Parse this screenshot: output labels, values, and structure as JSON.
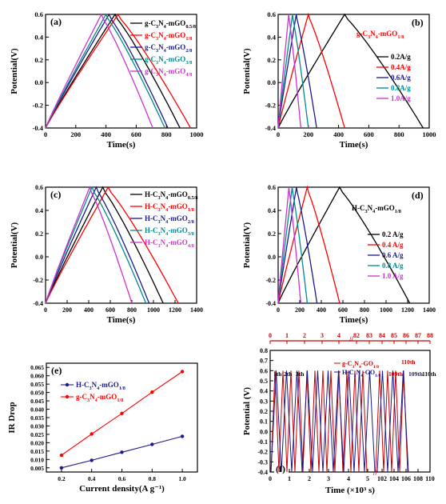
{
  "chart_data": [
    {
      "type": "line",
      "panel": "(a)",
      "xlabel": "Time(s)",
      "ylabel": "Potential(V)",
      "xlim": [
        0,
        1000
      ],
      "ylim": [
        -0.4,
        0.6
      ],
      "xticks": [
        0,
        200,
        400,
        600,
        800,
        1000
      ],
      "yticks": [
        -0.4,
        -0.2,
        0.0,
        0.2,
        0.4,
        0.6
      ],
      "legend_position": "top-right",
      "series": [
        {
          "name": "g-C3N4-mGO0.5/8",
          "name_parts": [
            "g-C",
            "3",
            "N",
            "4",
            "-mGO",
            "0.5/8"
          ],
          "color": "#000000",
          "x": [
            0,
            460,
            890
          ]
        },
        {
          "name": "g-C3N4-mGO1/8",
          "name_parts": [
            "g-C",
            "3",
            "N",
            "4",
            "-mGO",
            "1/8"
          ],
          "color": "#ff0000",
          "x": [
            0,
            480,
            960
          ]
        },
        {
          "name": "g-C3N4-mGO2/8",
          "name_parts": [
            "g-C",
            "3",
            "N",
            "4",
            "-mGO",
            "2/8"
          ],
          "color": "#1a1a8c",
          "x": [
            0,
            420,
            810
          ]
        },
        {
          "name": "g-C3N4-mGO3/8",
          "name_parts": [
            "g-C",
            "3",
            "N",
            "4",
            "-mGO",
            "3/8"
          ],
          "color": "#008b8b",
          "x": [
            0,
            400,
            790
          ]
        },
        {
          "name": "g-C3N4-mGO4/8",
          "name_parts": [
            "g-C",
            "3",
            "N",
            "4",
            "-mGO",
            "4/8"
          ],
          "color": "#cc33cc",
          "x": [
            0,
            370,
            710
          ]
        }
      ]
    },
    {
      "type": "line",
      "panel": "(b)",
      "xlabel": "Time(s)",
      "ylabel": "Potential(V)",
      "xlim": [
        0,
        1000
      ],
      "ylim": [
        -0.4,
        0.6
      ],
      "xticks": [
        0,
        200,
        400,
        600,
        800,
        1000
      ],
      "yticks": [
        -0.4,
        -0.2,
        0.0,
        0.2,
        0.4,
        0.6
      ],
      "annotation_parts": [
        "g-C",
        "3",
        "N",
        "4",
        "-mGO",
        "1/8"
      ],
      "legend_position": "right",
      "series": [
        {
          "name": "0.2 A/g",
          "color": "#000000",
          "x": [
            0,
            440,
            960
          ]
        },
        {
          "name": "0.4 A/g",
          "color": "#ff0000",
          "x": [
            0,
            200,
            440
          ]
        },
        {
          "name": "0.6 A/g",
          "color": "#1a1a8c",
          "x": [
            0,
            120,
            255
          ]
        },
        {
          "name": "0.8 A/g",
          "color": "#008b8b",
          "x": [
            0,
            95,
            200
          ]
        },
        {
          "name": "1.0 A/g",
          "color": "#cc33cc",
          "x": [
            0,
            70,
            150
          ]
        }
      ]
    },
    {
      "type": "line",
      "panel": "(c)",
      "xlabel": "Time(s)",
      "ylabel": "Potential(V)",
      "xlim": [
        0,
        1400
      ],
      "ylim": [
        -0.4,
        0.6
      ],
      "xticks": [
        0,
        200,
        400,
        600,
        800,
        1000,
        1200,
        1400
      ],
      "yticks": [
        -0.4,
        -0.2,
        0.0,
        0.2,
        0.4,
        0.6
      ],
      "legend_position": "top-right",
      "series": [
        {
          "name": "H-C3N4-mGO0.5/8",
          "name_parts": [
            "H-C",
            "3",
            "N",
            "4",
            "-mGO",
            "0.5/8"
          ],
          "color": "#000000",
          "x": [
            0,
            530,
            1090
          ]
        },
        {
          "name": "H-C3N4-mGO1/8",
          "name_parts": [
            "H-C",
            "3",
            "N",
            "4",
            "-mGO",
            "1/8"
          ],
          "color": "#ff0000",
          "x": [
            0,
            580,
            1230
          ]
        },
        {
          "name": "H-C3N4-mGO2/8",
          "name_parts": [
            "H-C",
            "3",
            "N",
            "4",
            "-mGO",
            "2/8"
          ],
          "color": "#1a1a8c",
          "x": [
            0,
            470,
            960
          ]
        },
        {
          "name": "H-C3N4-mGO3/8",
          "name_parts": [
            "H-C",
            "3",
            "N",
            "4",
            "-mGO",
            "3/8"
          ],
          "color": "#008b8b",
          "x": [
            0,
            430,
            930
          ]
        },
        {
          "name": "H-C3N4-mGO4/8",
          "name_parts": [
            "H-C",
            "3",
            "N",
            "4",
            "-mGO",
            "4/8"
          ],
          "color": "#cc33cc",
          "x": [
            0,
            410,
            800
          ]
        }
      ]
    },
    {
      "type": "line",
      "panel": "(d)",
      "xlabel": "Time(s)",
      "ylabel": "Potential(V)",
      "xlim": [
        0,
        1400
      ],
      "ylim": [
        -0.4,
        0.6
      ],
      "xticks": [
        0,
        200,
        400,
        600,
        800,
        1000,
        1200,
        1400
      ],
      "yticks": [
        -0.4,
        -0.2,
        0.0,
        0.2,
        0.4,
        0.6
      ],
      "annotation_parts": [
        "H-C",
        "3",
        "N",
        "4",
        "-mGO",
        "1/8"
      ],
      "legend_position": "right",
      "series": [
        {
          "name": "0.2 A/g",
          "color": "#000000",
          "x": [
            0,
            570,
            1220
          ]
        },
        {
          "name": "0.4 A/g",
          "color": "#ff0000",
          "x": [
            0,
            270,
            570
          ]
        },
        {
          "name": "0.6 A/g",
          "color": "#1a1a8c",
          "x": [
            0,
            170,
            360
          ]
        },
        {
          "name": "0.8 A/g",
          "color": "#008b8b",
          "x": [
            0,
            130,
            270
          ]
        },
        {
          "name": "1.0 A/g",
          "color": "#cc33cc",
          "x": [
            0,
            100,
            210
          ]
        }
      ]
    },
    {
      "type": "line",
      "panel": "(e)",
      "xlabel": "Current density(A g⁻¹)",
      "ylabel": "IR Drop",
      "xlim": [
        0.1,
        1.1
      ],
      "ylim": [
        0.0025,
        0.0675
      ],
      "xticks": [
        "0.2",
        "0.4",
        "0.6",
        "0.8",
        "1.0"
      ],
      "yticks": [
        "0.005",
        "0.010",
        "0.015",
        "0.020",
        "0.025",
        "0.030",
        "0.035",
        "0.040",
        "0.045",
        "0.050",
        "0.055",
        "0.060",
        "0.065"
      ],
      "legend_position": "top-left",
      "series": [
        {
          "name": "H-C3N4-mGO1/8",
          "name_parts": [
            "H-C",
            "3",
            "N",
            "4",
            "-mGO",
            "1/8"
          ],
          "color": "#1a1a8c",
          "x": [
            0.2,
            0.4,
            0.6,
            0.8,
            1.0
          ],
          "y": [
            0.005,
            0.0095,
            0.0143,
            0.019,
            0.0238
          ]
        },
        {
          "name": "g-C3N4-mGO1/8",
          "name_parts": [
            "g-C",
            "3",
            "N",
            "4",
            "-mGO",
            "1/8"
          ],
          "color": "#ff0000",
          "x": [
            0.2,
            0.4,
            0.6,
            0.8,
            1.0
          ],
          "y": [
            0.0125,
            0.0252,
            0.0375,
            0.0502,
            0.0625
          ]
        }
      ]
    },
    {
      "type": "line",
      "panel": "(f)",
      "xlabel": "Time (×10³ s)",
      "ylabel": "Potential (V)",
      "ylim": [
        -0.4,
        0.8
      ],
      "yticks": [
        -0.4,
        -0.3,
        -0.2,
        -0.1,
        0.0,
        0.1,
        0.2,
        0.3,
        0.4,
        0.5,
        0.6,
        0.7,
        0.8
      ],
      "bottom_xticks": [
        "0",
        "1",
        "2",
        "3",
        "4",
        "5",
        "102",
        "104",
        "106",
        "108",
        "110"
      ],
      "top_xticks": [
        "0",
        "1",
        "2",
        "3",
        "4",
        "82",
        "83",
        "84",
        "85",
        "86",
        "87",
        "88"
      ],
      "cycle_labels_left": [
        "1th",
        "2th",
        "3th"
      ],
      "cycle_labels_right": [
        "109th",
        "110th"
      ],
      "cycle_label_red_top": "110th",
      "legend_position": "top-center",
      "series": [
        {
          "name": "g-C3N4-GO1/8",
          "name_parts": [
            "g-C",
            "3",
            "N",
            "4",
            "-GO",
            "1/8"
          ],
          "color": "#cc0000"
        },
        {
          "name": "H-C3N4-GO1/8",
          "name_parts": [
            "H-C",
            "3",
            "N",
            "4",
            "-GO",
            "1/8"
          ],
          "color": "#1a1a8c"
        }
      ]
    }
  ]
}
